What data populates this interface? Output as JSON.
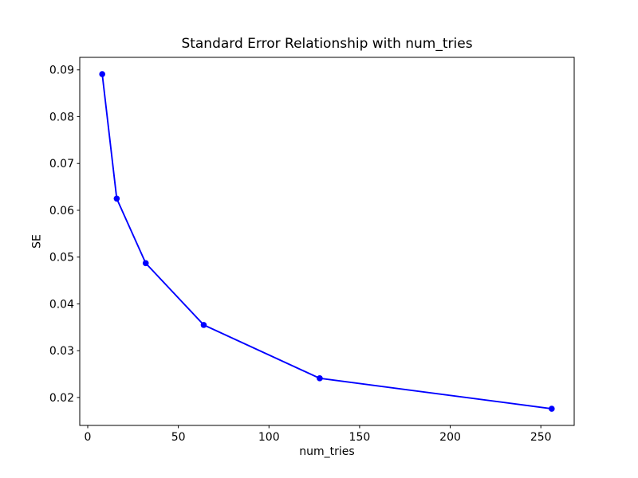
{
  "figure": {
    "background_color": "#ffffff",
    "text_color": "#000000",
    "spine_color": "#000000"
  },
  "chart_data": {
    "type": "line",
    "title": "Standard Error Relationship with num_tries",
    "xlabel": "num_tries",
    "ylabel": "SE",
    "series": [
      {
        "name": "SE",
        "x": [
          8,
          16,
          32,
          64,
          128,
          256
        ],
        "y": [
          0.0891,
          0.0625,
          0.0487,
          0.0355,
          0.0241,
          0.0176
        ],
        "color": "#0000ff",
        "marker": "o",
        "line_width": 1.9,
        "marker_radius": 3.8
      }
    ],
    "xlim": [
      -4.4,
      268.4
    ],
    "ylim": [
      0.01403,
      0.09268
    ],
    "xticks": [
      0,
      50,
      100,
      150,
      200,
      250
    ],
    "yticks": [
      0.02,
      0.03,
      0.04,
      0.05,
      0.06,
      0.07,
      0.08,
      0.09
    ],
    "ytick_decimals": 2,
    "grid": false,
    "legend": "none"
  }
}
